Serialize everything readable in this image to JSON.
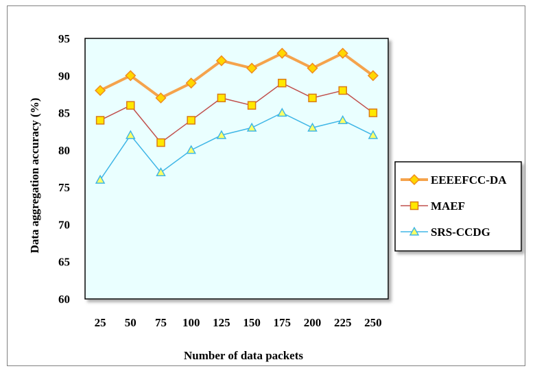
{
  "chart_data": {
    "type": "line",
    "title": "",
    "xlabel": "Number of data packets",
    "ylabel": "Data aggregation accuracy (%)",
    "ylim": [
      60,
      95
    ],
    "yticks": [
      60,
      65,
      70,
      75,
      80,
      85,
      90,
      95
    ],
    "categories": [
      "25",
      "50",
      "75",
      "100",
      "125",
      "150",
      "175",
      "200",
      "225",
      "250"
    ],
    "legend_position": "right",
    "grid": false,
    "plot_background": "#eaffff",
    "series": [
      {
        "name": "EEEEFCC-DA",
        "values": [
          88,
          90,
          87,
          89,
          92,
          91,
          93,
          91,
          93,
          90
        ],
        "color": "#f5a34c",
        "marker": "diamond",
        "marker_fill": "#ffd700",
        "marker_stroke": "#f08c1e"
      },
      {
        "name": "MAEF",
        "values": [
          84,
          86,
          81,
          84,
          87,
          86,
          89,
          87,
          88,
          85
        ],
        "color": "#c0504d",
        "marker": "square",
        "marker_fill": "#ffe800",
        "marker_stroke": "#d97a17"
      },
      {
        "name": "SRS-CCDG",
        "values": [
          76,
          82,
          77,
          80,
          82,
          83,
          85,
          83,
          84,
          82
        ],
        "color": "#3fb6e6",
        "marker": "triangle",
        "marker_fill": "#ffff66",
        "marker_stroke": "#3fb6e6"
      }
    ]
  }
}
